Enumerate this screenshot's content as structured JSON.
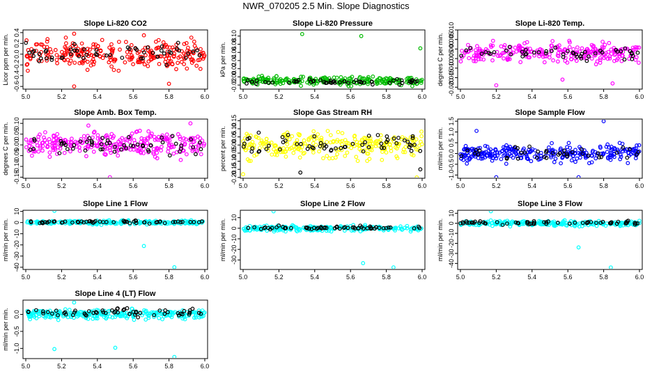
{
  "main_title": "NWR_070205  2.5 Min. Slope Diagnostics",
  "chart_data": [
    {
      "type": "scatter",
      "title": "Slope Li-820 CO2",
      "xlabel": "",
      "ylabel": "Licor ppm per min.",
      "xlim": [
        5.0,
        6.0
      ],
      "xticks": [
        5.0,
        5.2,
        5.4,
        5.6,
        5.8,
        6.0
      ],
      "ylim": [
        -0.65,
        0.45
      ],
      "yticks": [
        -0.6,
        -0.4,
        -0.2,
        0.0,
        0.2,
        0.4
      ],
      "ytick_labels": [
        "-0.6",
        "-0.4",
        "-0.2",
        "0.0",
        "0.2",
        "0.4"
      ],
      "series": [
        {
          "name": "all",
          "color": "#ff0000",
          "n": 260,
          "spread": 0.22,
          "mean": 0.0,
          "outliers": [
            [
              5.27,
              0.38
            ],
            [
              5.66,
              0.35
            ],
            [
              5.8,
              -0.55
            ],
            [
              5.27,
              -0.6
            ]
          ]
        },
        {
          "name": "black",
          "color": "#000000",
          "n": 55,
          "spread": 0.15,
          "mean": 0.0,
          "outliers": []
        }
      ]
    },
    {
      "type": "scatter",
      "title": "Slope Li-820 Pressure",
      "xlabel": "",
      "ylabel": "kPa per min.",
      "xlim": [
        5.0,
        6.0
      ],
      "xticks": [
        5.0,
        5.2,
        5.4,
        5.6,
        5.8,
        6.0
      ],
      "ylim": [
        -0.03,
        0.115
      ],
      "yticks": [
        -0.02,
        0.0,
        0.02,
        0.04,
        0.06,
        0.08,
        0.1
      ],
      "ytick_labels": [
        "-0.02",
        "0.00",
        "0.02",
        "0.04",
        "0.06",
        "0.08",
        "0.10"
      ],
      "series": [
        {
          "name": "all",
          "color": "#00bb00",
          "n": 240,
          "spread": 0.009,
          "mean": -0.01,
          "outliers": [
            [
              5.33,
              0.105
            ],
            [
              5.66,
              0.1
            ],
            [
              5.99,
              0.07
            ]
          ]
        },
        {
          "name": "black",
          "color": "#000000",
          "n": 55,
          "spread": 0.005,
          "mean": -0.012,
          "outliers": []
        }
      ]
    },
    {
      "type": "scatter",
      "title": "Slope Li-820 Temp.",
      "xlabel": "",
      "ylabel": "degrees C per min.",
      "xlim": [
        5.0,
        6.0
      ],
      "xticks": [
        5.0,
        5.2,
        5.4,
        5.6,
        5.8,
        6.0
      ],
      "ylim": [
        -0.021,
        0.01
      ],
      "yticks": [
        -0.02,
        -0.015,
        -0.01,
        -0.005,
        0.0,
        0.005,
        0.01
      ],
      "ytick_labels": [
        "-0.020",
        "-0.015",
        "-0.010",
        "-0.005",
        "0.000",
        "0.005",
        "0.010"
      ],
      "series": [
        {
          "name": "all",
          "color": "#ff00ff",
          "n": 260,
          "spread": 0.0045,
          "mean": -0.002,
          "outliers": [
            [
              5.2,
              -0.019
            ],
            [
              5.85,
              -0.018
            ],
            [
              5.57,
              -0.016
            ]
          ]
        },
        {
          "name": "black",
          "color": "#000000",
          "n": 50,
          "spread": 0.003,
          "mean": -0.002,
          "outliers": []
        }
      ]
    },
    {
      "type": "scatter",
      "title": "Slope Amb. Box Temp.",
      "xlabel": "",
      "ylabel": "degrees C per min.",
      "xlim": [
        5.0,
        6.0
      ],
      "xticks": [
        5.0,
        5.2,
        5.4,
        5.6,
        5.8,
        6.0
      ],
      "ylim": [
        -0.155,
        0.12
      ],
      "yticks": [
        -0.15,
        -0.1,
        -0.05,
        0.0,
        0.05,
        0.1
      ],
      "ytick_labels": [
        "-0.15",
        "-0.10",
        "-0.05",
        "0.00",
        "0.05",
        "0.10"
      ],
      "series": [
        {
          "name": "all",
          "color": "#ff00ff",
          "n": 280,
          "spread": 0.05,
          "mean": 0.0,
          "outliers": [
            [
              5.47,
              -0.15
            ],
            [
              5.92,
              0.1
            ],
            [
              5.35,
              0.09
            ]
          ]
        },
        {
          "name": "black",
          "color": "#000000",
          "n": 55,
          "spread": 0.035,
          "mean": 0.0,
          "outliers": []
        }
      ]
    },
    {
      "type": "scatter",
      "title": "Slope Gas Stream RH",
      "xlabel": "",
      "ylabel": "percent per min.",
      "xlim": [
        5.0,
        6.0
      ],
      "xticks": [
        5.0,
        5.2,
        5.4,
        5.6,
        5.8,
        6.0
      ],
      "ylim": [
        -0.205,
        0.16
      ],
      "yticks": [
        -0.2,
        -0.15,
        -0.1,
        -0.05,
        0.0,
        0.05,
        0.1,
        0.15
      ],
      "ytick_labels": [
        "-0.20",
        "-0.15",
        "-0.10",
        "-0.05",
        "0.00",
        "0.05",
        "0.10",
        "0.15"
      ],
      "series": [
        {
          "name": "all",
          "color": "#ffff00",
          "n": 260,
          "spread": 0.07,
          "mean": 0.0,
          "outliers": [
            [
              5.97,
              -0.2
            ],
            [
              5.0,
              -0.18
            ]
          ]
        },
        {
          "name": "black",
          "color": "#000000",
          "n": 60,
          "spread": 0.06,
          "mean": 0.0,
          "outliers": [
            [
              5.32,
              -0.17
            ],
            [
              5.99,
              -0.15
            ]
          ]
        }
      ]
    },
    {
      "type": "scatter",
      "title": "Slope Sample Flow",
      "xlabel": "",
      "ylabel": "ml/min per min.",
      "xlim": [
        5.0,
        6.0
      ],
      "xticks": [
        5.0,
        5.2,
        5.4,
        5.6,
        5.8,
        6.0
      ],
      "ylim": [
        -1.15,
        1.6
      ],
      "yticks": [
        -1.0,
        -0.5,
        0.0,
        0.5,
        1.0,
        1.5
      ],
      "ytick_labels": [
        "-1.0",
        "-0.5",
        "0.0",
        "0.5",
        "1.0",
        "1.5"
      ],
      "series": [
        {
          "name": "all",
          "color": "#0000ff",
          "n": 280,
          "spread": 0.35,
          "mean": 0.0,
          "outliers": [
            [
              5.8,
              1.5
            ],
            [
              5.09,
              1.05
            ],
            [
              5.2,
              -1.1
            ],
            [
              5.66,
              -1.1
            ]
          ]
        },
        {
          "name": "black",
          "color": "#000000",
          "n": 40,
          "spread": 0.3,
          "mean": 0.0,
          "outliers": []
        }
      ]
    },
    {
      "type": "scatter",
      "title": "Slope Line 1 Flow",
      "xlabel": "",
      "ylabel": "ml/min per min.",
      "xlim": [
        5.0,
        6.0
      ],
      "xticks": [
        5.0,
        5.2,
        5.4,
        5.6,
        5.8,
        6.0
      ],
      "ylim": [
        -42,
        11
      ],
      "yticks": [
        -40,
        -30,
        -20,
        -10,
        0,
        10
      ],
      "ytick_labels": [
        "-40",
        "-30",
        "-20",
        "-10",
        "0",
        "10"
      ],
      "series": [
        {
          "name": "all",
          "color": "#00ffff",
          "n": 240,
          "spread": 1.5,
          "mean": 0.0,
          "outliers": [
            [
              5.16,
              10.5
            ],
            [
              5.66,
              -21
            ],
            [
              5.83,
              -40
            ]
          ]
        },
        {
          "name": "black",
          "color": "#000000",
          "n": 60,
          "spread": 1.0,
          "mean": 0.5,
          "outliers": []
        }
      ]
    },
    {
      "type": "scatter",
      "title": "Slope Line 2 Flow",
      "xlabel": "",
      "ylabel": "ml/min per min.",
      "xlim": [
        5.0,
        6.0
      ],
      "xticks": [
        5.0,
        5.2,
        5.4,
        5.6,
        5.8,
        6.0
      ],
      "ylim": [
        -39,
        17
      ],
      "yticks": [
        -30,
        -20,
        -10,
        0,
        10
      ],
      "ytick_labels": [
        "-30",
        "-20",
        "-10",
        "0",
        "10"
      ],
      "series": [
        {
          "name": "all",
          "color": "#00ffff",
          "n": 240,
          "spread": 2.2,
          "mean": 0.0,
          "outliers": [
            [
              5.17,
              16
            ],
            [
              5.67,
              -33
            ],
            [
              5.84,
              -37
            ]
          ]
        },
        {
          "name": "black",
          "color": "#000000",
          "n": 60,
          "spread": 1.5,
          "mean": 0.5,
          "outliers": []
        }
      ]
    },
    {
      "type": "scatter",
      "title": "Slope Line 3 Flow",
      "xlabel": "",
      "ylabel": "ml/min per min.",
      "xlim": [
        5.0,
        6.0
      ],
      "xticks": [
        5.0,
        5.2,
        5.4,
        5.6,
        5.8,
        6.0
      ],
      "ylim": [
        -46,
        13
      ],
      "yticks": [
        -40,
        -30,
        -20,
        -10,
        0,
        10
      ],
      "ytick_labels": [
        "-40",
        "-30",
        "-20",
        "-10",
        "0",
        "10"
      ],
      "series": [
        {
          "name": "all",
          "color": "#00ffff",
          "n": 240,
          "spread": 2.2,
          "mean": 0.0,
          "outliers": [
            [
              5.17,
              12
            ],
            [
              5.66,
              -24
            ],
            [
              5.84,
              -44
            ]
          ]
        },
        {
          "name": "black",
          "color": "#000000",
          "n": 60,
          "spread": 1.5,
          "mean": 0.5,
          "outliers": []
        }
      ]
    },
    {
      "type": "scatter",
      "title": "Slope Line 4 (LT) Flow",
      "xlabel": "",
      "ylabel": "ml/min per min.",
      "xlim": [
        5.0,
        6.0
      ],
      "xticks": [
        5.0,
        5.2,
        5.4,
        5.6,
        5.8,
        6.0
      ],
      "ylim": [
        -1.3,
        0.42
      ],
      "yticks": [
        -1.0,
        -0.5,
        0.0
      ],
      "ytick_labels": [
        "-1.0",
        "-0.5",
        "0.0"
      ],
      "series": [
        {
          "name": "all",
          "color": "#00ffff",
          "n": 280,
          "spread": 0.12,
          "mean": 0.0,
          "outliers": [
            [
              5.16,
              -1.02
            ],
            [
              5.5,
              -0.98
            ],
            [
              5.83,
              -1.25
            ],
            [
              5.27,
              0.35
            ]
          ]
        },
        {
          "name": "black",
          "color": "#000000",
          "n": 60,
          "spread": 0.1,
          "mean": 0.05,
          "outliers": []
        }
      ]
    }
  ]
}
